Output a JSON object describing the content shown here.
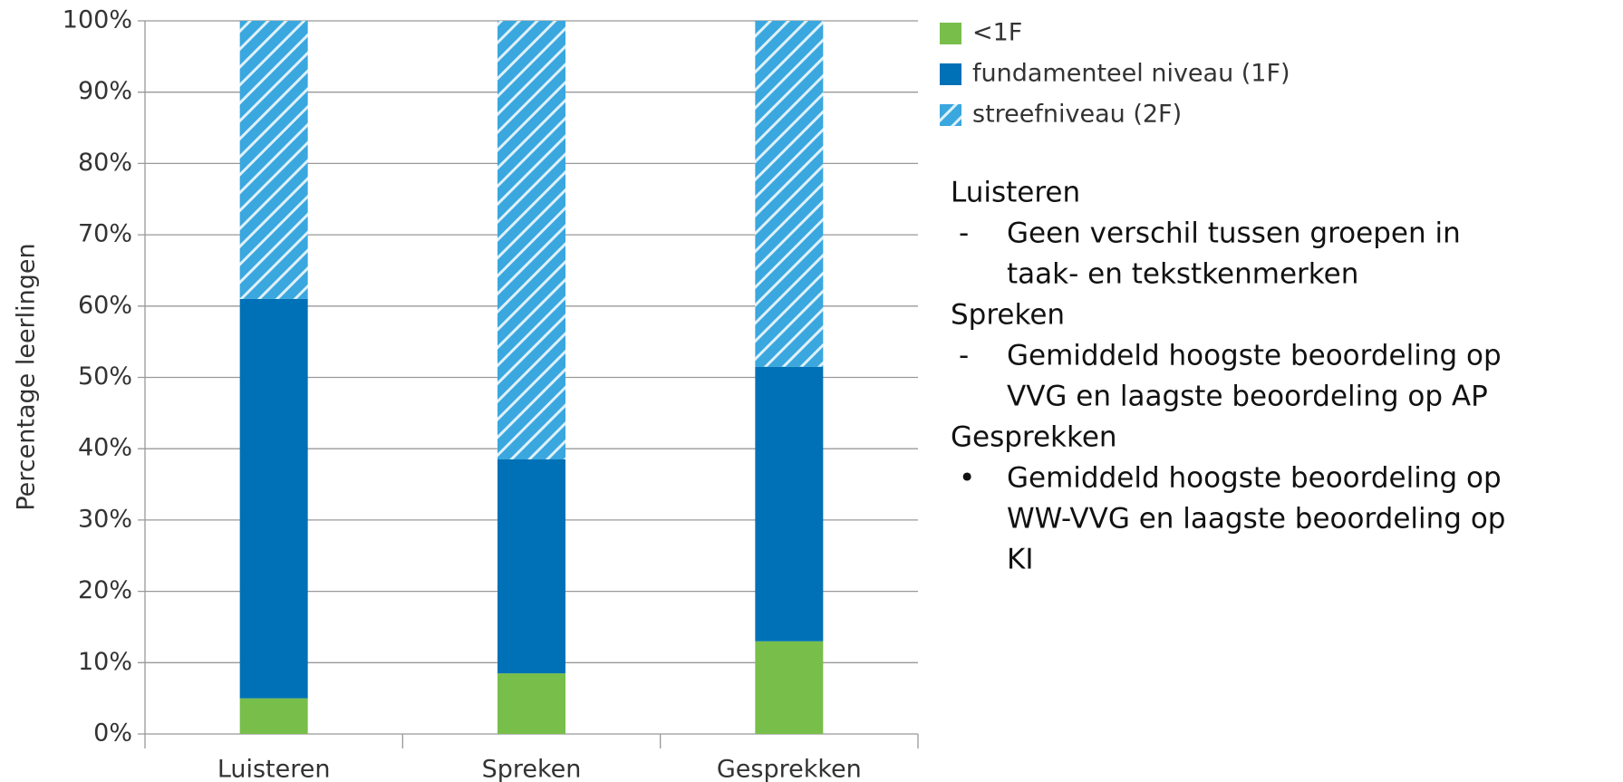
{
  "chart_data": {
    "type": "stacked_bar",
    "y_label": "Percentage leerlingen",
    "categories": [
      "Luisteren",
      "Spreken",
      "Gesprekken"
    ],
    "series": [
      {
        "name": "<1F",
        "color": "#78be4a",
        "values": [
          5,
          8.5,
          13
        ]
      },
      {
        "name": "fundamenteel niveau (1F)",
        "color": "#0071b6",
        "values": [
          56,
          30,
          38.5
        ]
      },
      {
        "name": "streefniveau (2F)",
        "color": "#3aa7df",
        "hatch": true,
        "values": [
          39,
          61.5,
          48.5
        ]
      }
    ],
    "ylim": [
      0,
      100
    ],
    "yticks": [
      {
        "value": 0,
        "label": "0%"
      },
      {
        "value": 10,
        "label": "10%"
      },
      {
        "value": 20,
        "label": "20%"
      },
      {
        "value": 30,
        "label": "30%"
      },
      {
        "value": 40,
        "label": "40%"
      },
      {
        "value": 50,
        "label": "50%"
      },
      {
        "value": 60,
        "label": "60%"
      },
      {
        "value": 70,
        "label": "70%"
      },
      {
        "value": 80,
        "label": "80%"
      },
      {
        "value": 90,
        "label": "90%"
      },
      {
        "value": 100,
        "label": "100%"
      }
    ],
    "grid": true,
    "legend": "right"
  },
  "notes": [
    {
      "heading": "Luisteren",
      "items": [
        {
          "marker": "-",
          "lines": [
            "Geen verschil tussen groepen in",
            "taak- en tekstkenmerken"
          ]
        }
      ]
    },
    {
      "heading": "Spreken",
      "items": [
        {
          "marker": "-",
          "lines": [
            "Gemiddeld hoogste beoordeling op",
            "VVG en laagste beoordeling op AP"
          ]
        }
      ]
    },
    {
      "heading": "Gesprekken",
      "items": [
        {
          "marker": "•",
          "lines": [
            "Gemiddeld hoogste beoordeling op",
            "WW-VVG en laagste beoordeling op",
            "KI"
          ]
        }
      ]
    }
  ]
}
